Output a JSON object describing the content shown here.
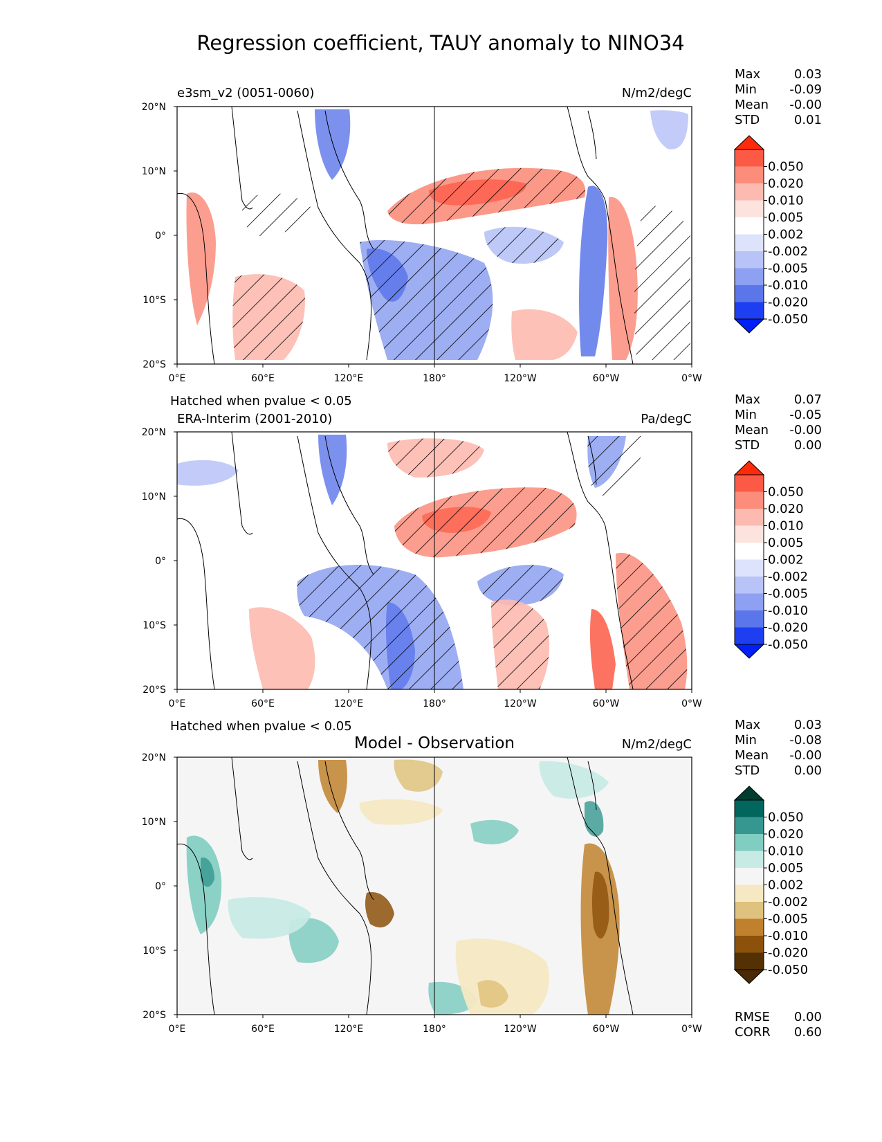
{
  "title": "Regression coefficient, TAUY anomaly to NINO34",
  "lon_ticks": [
    "0°E",
    "60°E",
    "120°E",
    "180°",
    "120°W",
    "60°W",
    "0°W"
  ],
  "lat_ticks": [
    "20°N",
    "10°N",
    "0°",
    "10°S",
    "20°S"
  ],
  "colorbar_levels": [
    "0.050",
    "0.020",
    "0.010",
    "0.005",
    "0.002",
    "-0.002",
    "-0.005",
    "-0.010",
    "-0.020",
    "-0.050"
  ],
  "stat_labels": [
    "Max",
    "Min",
    "Mean",
    "STD"
  ],
  "diff_stat_labels": [
    "RMSE",
    "CORR"
  ],
  "palettes": {
    "red_blue": [
      "#ff2a0a",
      "#fd5a45",
      "#fc8d7b",
      "#fdbab0",
      "#fde3de",
      "#ffffff",
      "#dde3fb",
      "#b8c3f7",
      "#8da0f1",
      "#5b76ea",
      "#1e3ff1",
      "#0020f5"
    ],
    "brbg": [
      "#003c30",
      "#01665e",
      "#35978f",
      "#80cdc1",
      "#c7eae5",
      "#f5f5f5",
      "#f6e8c3",
      "#dfc27d",
      "#bf812d",
      "#8c510a",
      "#543005",
      "#4a2a05"
    ]
  },
  "panels": [
    {
      "left_title": "e3sm_v2 (0051-0060)",
      "center_title": "",
      "units": "N/m2/degC",
      "footnote": "Hatched when pvalue < 0.05",
      "stats": {
        "max": "0.03",
        "min": "-0.09",
        "mean": "-0.00",
        "std": "0.01"
      }
    },
    {
      "left_title": "ERA-Interim (2001-2010)",
      "center_title": "",
      "units": "Pa/degC",
      "footnote": "Hatched when pvalue < 0.05",
      "stats": {
        "max": "0.07",
        "min": "-0.05",
        "mean": "-0.00",
        "std": "0.00"
      }
    },
    {
      "left_title": "",
      "center_title": "Model - Observation",
      "units": "N/m2/degC",
      "footnote": "",
      "stats": {
        "max": "0.03",
        "min": "-0.08",
        "mean": "-0.00",
        "std": "0.00"
      }
    }
  ],
  "diff_stats": {
    "rmse": "0.00",
    "corr": "0.60"
  }
}
